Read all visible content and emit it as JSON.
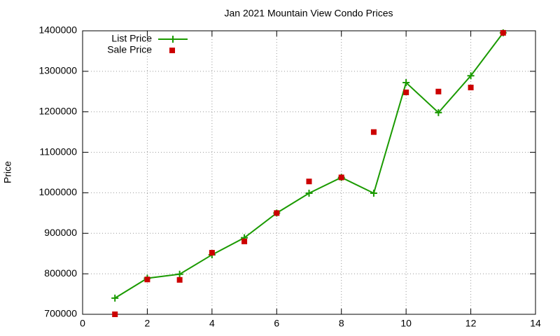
{
  "chart_data": {
    "type": "line",
    "title": "Jan 2021 Mountain View Condo Prices",
    "y_label": "Price",
    "xlim": [
      0,
      14
    ],
    "xticks": [
      0,
      2,
      4,
      6,
      8,
      10,
      12,
      14
    ],
    "ylim": [
      700000,
      1400000
    ],
    "yticks": [
      700000,
      800000,
      900000,
      1000000,
      1100000,
      1200000,
      1300000,
      1400000
    ],
    "grid": true,
    "legend": "top-left",
    "series": [
      {
        "name": "List Price",
        "color": "#1a9a00",
        "mode": "lines+markers",
        "x": [
          1,
          2,
          3,
          4,
          5,
          6,
          7,
          8,
          9,
          10,
          11,
          12,
          13
        ],
        "values": [
          740000,
          789000,
          799000,
          847000,
          889000,
          950000,
          999000,
          1038000,
          999000,
          1272000,
          1198000,
          1289000,
          1395000
        ]
      },
      {
        "name": "Sale Price",
        "color": "#cc0000",
        "mode": "markers",
        "x": [
          1,
          2,
          3,
          4,
          5,
          6,
          7,
          8,
          9,
          10,
          11,
          12,
          13
        ],
        "values": [
          700000,
          786000,
          785000,
          852000,
          880000,
          950000,
          1028000,
          1038000,
          1150000,
          1248000,
          1250000,
          1260000,
          1395000
        ]
      }
    ]
  }
}
